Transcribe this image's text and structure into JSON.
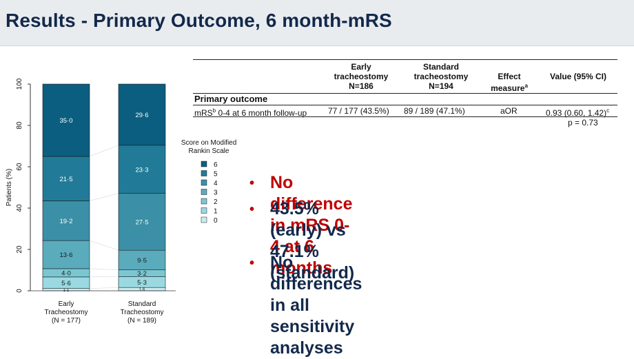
{
  "slide": {
    "title": "Results - Primary Outcome, 6 month-mRS"
  },
  "table": {
    "headers": [
      {
        "lines": [
          "Early",
          "tracheostomy",
          "N=186"
        ]
      },
      {
        "lines": [
          "Standard",
          "tracheostomy",
          "N=194"
        ]
      },
      {
        "lines": [
          "Effect",
          "measure"
        ],
        "sup": "a"
      },
      {
        "lines": [
          "Value (95% CI)"
        ]
      }
    ],
    "group_label": "Primary outcome",
    "row": {
      "label": "mRS",
      "label_sup": "b",
      "label_rest": " 0-4 at 6 month follow-up",
      "early": "77 / 177 (43.5%)",
      "standard": "89 / 189 (47.1%)",
      "effect": "aOR",
      "value": "0.93 (0.60, 1.42)",
      "value_sup": "c",
      "p_value": "p = 0.73"
    }
  },
  "bullets": [
    {
      "text": "No difference in mRS 0-4 at 6 months",
      "color": "#c00000"
    },
    {
      "text": "43.5% (early) vs 47.1% (standard)",
      "color": "#13294b"
    },
    {
      "text": "No differences in all sensitivity analyses",
      "lines": [
        "No differences in all sensitivity",
        "analyses"
      ],
      "color": "#13294b"
    }
  ],
  "bullet_symbol": "•",
  "bullet_symbol_color": "#c00000",
  "chart_data": {
    "type": "bar",
    "stacked": true,
    "ylabel": "Patients (%)",
    "ylim": [
      0,
      100
    ],
    "yticks": [
      "0",
      "20",
      "40",
      "60",
      "80",
      "100"
    ],
    "categories": [
      {
        "lines": [
          "Early",
          "Tracheostomy",
          "(N = 177)"
        ]
      },
      {
        "lines": [
          "Standard",
          "Tracheostomy",
          "(N = 189)"
        ]
      }
    ],
    "legend": {
      "title_lines": [
        "Score on Modified",
        "Rankin Scale"
      ],
      "placement": "right"
    },
    "series": [
      {
        "name": "0",
        "color": "#c8ecf0",
        "values": [
          1.1,
          1.6
        ],
        "labels": [
          "1·1",
          "1·6"
        ]
      },
      {
        "name": "1",
        "color": "#9ad9e2",
        "values": [
          5.6,
          5.3
        ],
        "labels": [
          "5·6",
          "5·3"
        ]
      },
      {
        "name": "2",
        "color": "#7ac7d2",
        "values": [
          4.0,
          3.2
        ],
        "labels": [
          "4·0",
          "3·2"
        ]
      },
      {
        "name": "3",
        "color": "#5aacbd",
        "values": [
          13.6,
          9.5
        ],
        "labels": [
          "13·6",
          "9·5"
        ]
      },
      {
        "name": "4",
        "color": "#3b8fa6",
        "values": [
          19.2,
          27.5
        ],
        "labels": [
          "19·2",
          "27·5"
        ]
      },
      {
        "name": "5",
        "color": "#217b98",
        "values": [
          21.5,
          23.3
        ],
        "labels": [
          "21·5",
          "23·3"
        ]
      },
      {
        "name": "6",
        "color": "#0b5e80",
        "values": [
          35.0,
          29.6
        ],
        "labels": [
          "35·0",
          "29·6"
        ]
      }
    ]
  }
}
